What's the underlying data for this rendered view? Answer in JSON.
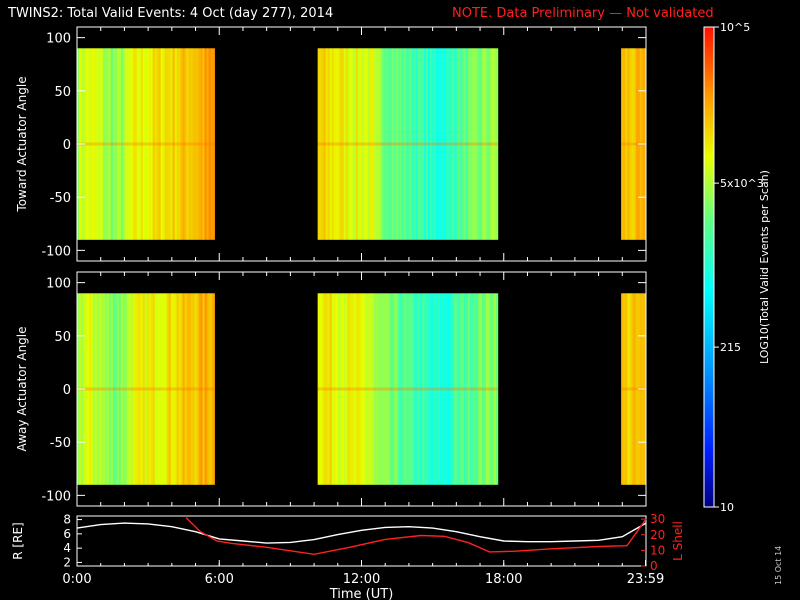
{
  "title": "TWINS2: Total Valid Events:  4 Oct (day 277), 2014",
  "note": "NOTE. Data Preliminary — Not validated",
  "stamp": "15 Oct 14",
  "colors": {
    "background": "#000000",
    "note": "#ff2020",
    "r_line": "#ffffff",
    "lshell_line": "#ff2020"
  },
  "chart_data": [
    {
      "type": "heatmap",
      "panel": "toward",
      "ylabel": "Toward Actuator Angle",
      "ylim": [
        -110,
        110
      ],
      "yticks": [
        100,
        50,
        0,
        -50,
        -100
      ],
      "data_angle_range": [
        -90,
        90
      ],
      "xlim": [
        0,
        24
      ],
      "data_segments_hours": [
        [
          0,
          5.8
        ],
        [
          10.15,
          17.75
        ],
        [
          22.95,
          24
        ]
      ],
      "colorbar_label": "LOG10(Total Valid Events per Scan)",
      "colorbar_ticks": [
        "10^5",
        "5x10^3",
        "215",
        "10"
      ],
      "colorscale": "log",
      "crange": [
        10,
        100000
      ]
    },
    {
      "type": "heatmap",
      "panel": "away",
      "ylabel": "Away Actuator Angle",
      "ylim": [
        -110,
        110
      ],
      "yticks": [
        100,
        50,
        0,
        -50,
        -100
      ],
      "data_angle_range": [
        -90,
        90
      ],
      "xlim": [
        0,
        24
      ],
      "data_segments_hours": [
        [
          0,
          5.8
        ],
        [
          10.15,
          17.75
        ],
        [
          22.95,
          24
        ]
      ]
    },
    {
      "type": "line",
      "panel": "ephemeris",
      "xlabel": "Time (UT)",
      "xticks": [
        "0:00",
        "6:00",
        "12:00",
        "18:00",
        "23:59"
      ],
      "xtick_hours": [
        0,
        6,
        12,
        18,
        23.98
      ],
      "ylabel_left": "R [RE]",
      "ylabel_right": "L Shell",
      "yticks_left": [
        8,
        6,
        4,
        2
      ],
      "ylim_left": [
        1.5,
        8.5
      ],
      "yticks_right": [
        30,
        20,
        10,
        0
      ],
      "ylim_right": [
        0,
        32
      ],
      "series": [
        {
          "name": "R [RE]",
          "axis": "left",
          "color": "#ffffff",
          "x": [
            0,
            1,
            2,
            3,
            4,
            5,
            6,
            7,
            8,
            9,
            10,
            11,
            12,
            13,
            14,
            15,
            16,
            17,
            18,
            19,
            20,
            21,
            22,
            23,
            24
          ],
          "y": [
            6.8,
            7.3,
            7.5,
            7.4,
            7.0,
            6.3,
            5.3,
            5.0,
            4.7,
            4.8,
            5.2,
            5.9,
            6.5,
            6.9,
            7.0,
            6.8,
            6.3,
            5.6,
            5.0,
            4.9,
            4.9,
            5.0,
            5.1,
            5.6,
            7.5
          ]
        },
        {
          "name": "L Shell",
          "axis": "right",
          "color": "#ff2020",
          "x": [
            4.6,
            5.2,
            5.9,
            6.5,
            8.0,
            10.0,
            11.5,
            13.0,
            14.5,
            15.5,
            16.5,
            17.4,
            18.5,
            20.0,
            22.0,
            23.2,
            24
          ],
          "y": [
            31,
            22,
            16,
            14.5,
            12,
            7.5,
            12,
            17,
            19.5,
            19,
            15,
            9,
            9.5,
            11,
            12.5,
            13,
            30
          ]
        }
      ]
    }
  ]
}
